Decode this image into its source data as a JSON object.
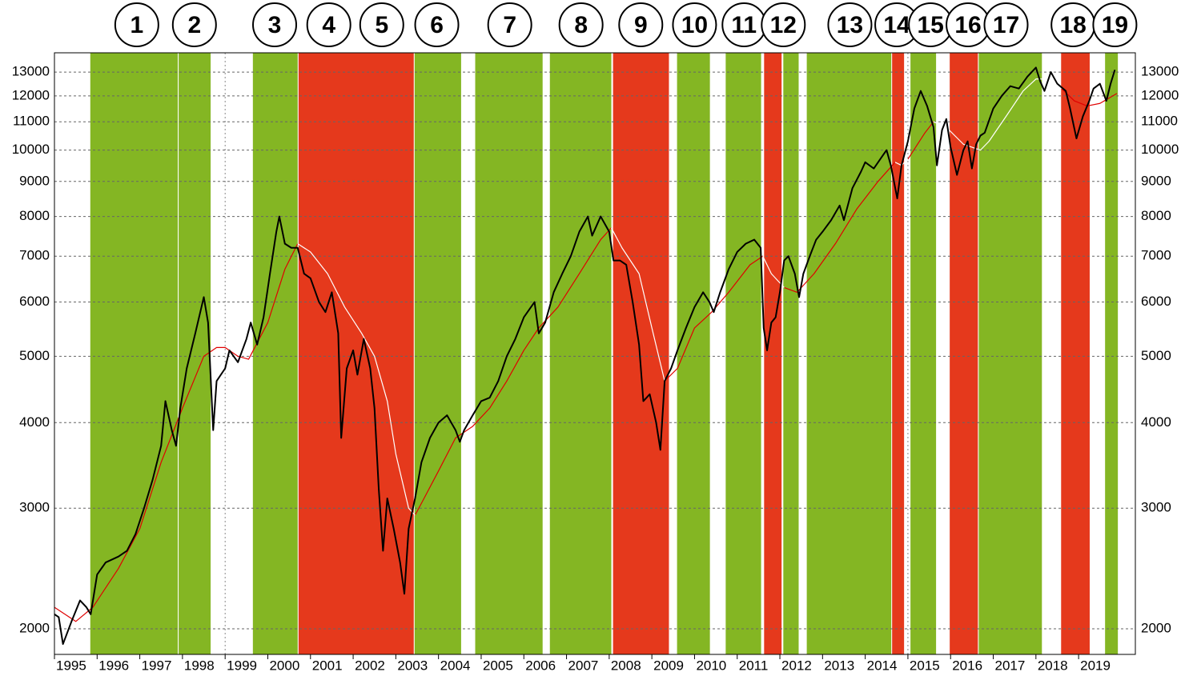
{
  "chart_data": {
    "type": "line",
    "log_scale": true,
    "grid": true,
    "xlim": [
      1995,
      2020.33
    ],
    "ylim": [
      1835,
      13870
    ],
    "xticks": [
      1995,
      1996,
      1997,
      1998,
      1999,
      2000,
      2001,
      2002,
      2003,
      2004,
      2005,
      2006,
      2007,
      2008,
      2009,
      2010,
      2011,
      2012,
      2013,
      2014,
      2015,
      2016,
      2017,
      2018,
      2019
    ],
    "yticks": [
      2000,
      3000,
      4000,
      5000,
      6000,
      7000,
      8000,
      9000,
      10000,
      11000,
      12000,
      13000
    ],
    "bands": [
      {
        "start": 1995.84,
        "end": 1997.89,
        "color": "#84b623"
      },
      {
        "start": 1997.91,
        "end": 1998.66,
        "color": "#84b623"
      },
      {
        "start": 1999.65,
        "end": 2000.7,
        "color": "#84b623"
      },
      {
        "start": 2000.72,
        "end": 2003.42,
        "color": "#e5391c"
      },
      {
        "start": 2003.44,
        "end": 2004.53,
        "color": "#84b623"
      },
      {
        "start": 2004.86,
        "end": 2006.44,
        "color": "#84b623"
      },
      {
        "start": 2006.61,
        "end": 2008.05,
        "color": "#84b623"
      },
      {
        "start": 2008.09,
        "end": 2009.4,
        "color": "#e5391c"
      },
      {
        "start": 2009.59,
        "end": 2010.36,
        "color": "#84b623"
      },
      {
        "start": 2010.73,
        "end": 2011.56,
        "color": "#84b623"
      },
      {
        "start": 2011.63,
        "end": 2012.04,
        "color": "#e5391c"
      },
      {
        "start": 2012.08,
        "end": 2012.44,
        "color": "#84b623"
      },
      {
        "start": 2012.63,
        "end": 2014.61,
        "color": "#84b623"
      },
      {
        "start": 2014.63,
        "end": 2014.91,
        "color": "#e5391c"
      },
      {
        "start": 2015.06,
        "end": 2015.66,
        "color": "#84b623"
      },
      {
        "start": 2015.98,
        "end": 2016.64,
        "color": "#e5391c"
      },
      {
        "start": 2016.66,
        "end": 2018.14,
        "color": "#84b623"
      },
      {
        "start": 2018.59,
        "end": 2019.26,
        "color": "#e5391c"
      },
      {
        "start": 2019.62,
        "end": 2019.92,
        "color": "#84b623"
      }
    ],
    "annotations": [
      {
        "label": "1",
        "x": 1996.93
      },
      {
        "label": "2",
        "x": 1998.28
      },
      {
        "label": "3",
        "x": 2000.16
      },
      {
        "label": "4",
        "x": 2001.43
      },
      {
        "label": "5",
        "x": 2002.67
      },
      {
        "label": "6",
        "x": 2003.96
      },
      {
        "label": "7",
        "x": 2005.67
      },
      {
        "label": "8",
        "x": 2007.34
      },
      {
        "label": "9",
        "x": 2008.74
      },
      {
        "label": "10",
        "x": 2010.0
      },
      {
        "label": "11",
        "x": 2011.16
      },
      {
        "label": "12",
        "x": 2012.08
      },
      {
        "label": "13",
        "x": 2013.64
      },
      {
        "label": "14",
        "x": 2014.74
      },
      {
        "label": "15",
        "x": 2015.53
      },
      {
        "label": "16",
        "x": 2016.41
      },
      {
        "label": "17",
        "x": 2017.3
      },
      {
        "label": "18",
        "x": 2018.87
      },
      {
        "label": "19",
        "x": 2019.85
      }
    ],
    "series": [
      {
        "color": "#000000",
        "x": [
          1995.0,
          1995.1,
          1995.2,
          1995.4,
          1995.6,
          1995.75,
          1995.85,
          1996.0,
          1996.2,
          1996.5,
          1996.7,
          1996.9,
          1997.1,
          1997.3,
          1997.5,
          1997.6,
          1997.75,
          1997.85,
          1997.95,
          1998.1,
          1998.3,
          1998.5,
          1998.6,
          1998.72,
          1998.8,
          1999.0,
          1999.1,
          1999.3,
          1999.5,
          1999.6,
          1999.75,
          1999.9,
          2000.05,
          2000.2,
          2000.27,
          2000.4,
          2000.55,
          2000.7,
          2000.85,
          2001.0,
          2001.2,
          2001.35,
          2001.5,
          2001.65,
          2001.72,
          2001.85,
          2002.0,
          2002.1,
          2002.25,
          2002.4,
          2002.5,
          2002.6,
          2002.7,
          2002.8,
          2002.95,
          2003.1,
          2003.2,
          2003.3,
          2003.45,
          2003.6,
          2003.8,
          2004.0,
          2004.2,
          2004.4,
          2004.5,
          2004.6,
          2004.8,
          2005.0,
          2005.2,
          2005.4,
          2005.6,
          2005.8,
          2006.0,
          2006.25,
          2006.35,
          2006.5,
          2006.7,
          2006.9,
          2007.1,
          2007.3,
          2007.5,
          2007.6,
          2007.8,
          2008.0,
          2008.1,
          2008.25,
          2008.4,
          2008.55,
          2008.7,
          2008.8,
          2008.95,
          2009.1,
          2009.2,
          2009.3,
          2009.45,
          2009.6,
          2009.8,
          2010.0,
          2010.2,
          2010.35,
          2010.45,
          2010.6,
          2010.8,
          2011.0,
          2011.2,
          2011.4,
          2011.55,
          2011.62,
          2011.7,
          2011.8,
          2011.9,
          2012.0,
          2012.1,
          2012.2,
          2012.35,
          2012.45,
          2012.55,
          2012.7,
          2012.85,
          2013.0,
          2013.2,
          2013.4,
          2013.5,
          2013.7,
          2013.9,
          2014.0,
          2014.2,
          2014.4,
          2014.5,
          2014.6,
          2014.75,
          2014.85,
          2015.0,
          2015.15,
          2015.3,
          2015.45,
          2015.6,
          2015.68,
          2015.8,
          2015.9,
          2016.0,
          2016.15,
          2016.3,
          2016.4,
          2016.5,
          2016.6,
          2016.7,
          2016.8,
          2017.0,
          2017.2,
          2017.4,
          2017.6,
          2017.8,
          2018.0,
          2018.1,
          2018.2,
          2018.35,
          2018.5,
          2018.7,
          2018.8,
          2018.95,
          2019.1,
          2019.25,
          2019.35,
          2019.5,
          2019.65,
          2019.75,
          2019.85
        ],
        "values": [
          2100,
          2080,
          1900,
          2050,
          2200,
          2150,
          2100,
          2400,
          2500,
          2550,
          2600,
          2750,
          3000,
          3300,
          3700,
          4300,
          3900,
          3700,
          4200,
          4800,
          5400,
          6100,
          5600,
          3900,
          4600,
          4800,
          5100,
          4900,
          5300,
          5600,
          5200,
          5700,
          6600,
          7600,
          8000,
          7300,
          7200,
          7200,
          6600,
          6500,
          6000,
          5800,
          6200,
          5400,
          3800,
          4800,
          5100,
          4700,
          5300,
          4800,
          4200,
          3200,
          2600,
          3100,
          2800,
          2500,
          2250,
          2800,
          3100,
          3500,
          3800,
          4000,
          4100,
          3900,
          3750,
          3900,
          4100,
          4300,
          4350,
          4600,
          5000,
          5300,
          5700,
          6000,
          5400,
          5600,
          6200,
          6600,
          7000,
          7600,
          8000,
          7500,
          8000,
          7600,
          6900,
          6900,
          6800,
          6000,
          5200,
          4300,
          4400,
          4000,
          3650,
          4600,
          4800,
          5100,
          5500,
          5900,
          6200,
          6000,
          5800,
          6200,
          6700,
          7100,
          7300,
          7400,
          7200,
          5500,
          5100,
          5600,
          5700,
          6200,
          6900,
          7000,
          6600,
          6100,
          6600,
          7000,
          7400,
          7600,
          7900,
          8300,
          7900,
          8800,
          9300,
          9600,
          9400,
          9800,
          10000,
          9500,
          8500,
          9500,
          10300,
          11500,
          12200,
          11600,
          10800,
          9500,
          10700,
          11100,
          10100,
          9200,
          10000,
          10300,
          9400,
          10200,
          10500,
          10600,
          11500,
          12000,
          12400,
          12300,
          12800,
          13200,
          12600,
          12200,
          13000,
          12500,
          12200,
          11500,
          10400,
          11200,
          11800,
          12300,
          12500,
          11800,
          12500,
          13100
        ]
      },
      {
        "color": "#e00000",
        "x": [
          1995.0,
          1995.5,
          1995.9,
          1996.5,
          1997.0,
          1997.5,
          1998.0,
          1998.5,
          1998.8,
          1999.0,
          1999.3,
          1999.55,
          2000.0,
          2000.4,
          2000.7,
          2001.0,
          2001.4,
          2001.8,
          2002.2,
          2002.5,
          2002.8,
          2003.0,
          2003.3,
          2003.45,
          2003.6,
          2004.0,
          2004.4,
          2004.8,
          2005.2,
          2005.6,
          2006.0,
          2006.35,
          2006.8,
          2007.3,
          2007.8,
          2008.05,
          2008.3,
          2008.7,
          2009.0,
          2009.3,
          2009.6,
          2010.0,
          2010.4,
          2010.8,
          2011.3,
          2011.6,
          2011.8,
          2012.1,
          2012.4,
          2012.8,
          2013.3,
          2013.8,
          2014.3,
          2014.7,
          2014.85,
          2015.0,
          2015.4,
          2015.6,
          2015.9,
          2016.3,
          2016.7,
          2016.9,
          2017.3,
          2017.7,
          2018.0,
          2018.4,
          2018.6,
          2018.9,
          2019.2,
          2019.5,
          2019.9
        ],
        "values": [
          2150,
          2050,
          2150,
          2450,
          2800,
          3500,
          4200,
          5000,
          5150,
          5150,
          5000,
          4950,
          5600,
          6700,
          7300,
          null,
          null,
          null,
          null,
          null,
          null,
          null,
          null,
          2930,
          3050,
          3400,
          3800,
          3950,
          4200,
          4600,
          5100,
          5500,
          5900,
          6600,
          7400,
          7700,
          null,
          null,
          null,
          4600,
          4800,
          5500,
          5800,
          6200,
          6800,
          7000,
          null,
          6300,
          6200,
          6600,
          7300,
          8200,
          9000,
          9600,
          null,
          9700,
          10600,
          11000,
          null,
          null,
          null,
          null,
          null,
          null,
          null,
          null,
          12300,
          11800,
          11600,
          11700,
          12100
        ]
      },
      {
        "color": "#ffffff",
        "x": [
          1995.0,
          1995.5,
          1995.9,
          1996.5,
          1997.0,
          1997.5,
          1998.0,
          1998.5,
          1998.8,
          1999.0,
          1999.3,
          1999.55,
          2000.0,
          2000.4,
          2000.7,
          2001.0,
          2001.4,
          2001.8,
          2002.2,
          2002.5,
          2002.8,
          2003.0,
          2003.3,
          2003.45,
          2003.6,
          2004.0,
          2004.4,
          2004.8,
          2005.2,
          2005.6,
          2006.0,
          2006.35,
          2006.8,
          2007.3,
          2007.8,
          2008.05,
          2008.3,
          2008.7,
          2009.0,
          2009.3,
          2009.6,
          2010.0,
          2010.4,
          2010.8,
          2011.3,
          2011.6,
          2011.8,
          2012.1,
          2012.4,
          2012.8,
          2013.3,
          2013.8,
          2014.3,
          2014.7,
          2014.85,
          2015.0,
          2015.4,
          2015.6,
          2015.9,
          2016.3,
          2016.7,
          2016.9,
          2017.3,
          2017.7,
          2018.0,
          2018.4,
          2018.6,
          2018.9,
          2019.2,
          2019.5,
          2019.9
        ],
        "values": [
          null,
          null,
          null,
          null,
          null,
          null,
          null,
          null,
          null,
          null,
          null,
          null,
          null,
          null,
          7300,
          7100,
          6600,
          5900,
          5400,
          5000,
          4300,
          3600,
          3000,
          2930,
          null,
          null,
          null,
          null,
          null,
          null,
          null,
          null,
          null,
          null,
          null,
          7700,
          7200,
          6600,
          5500,
          4600,
          null,
          null,
          null,
          null,
          null,
          7000,
          6600,
          6300,
          null,
          null,
          null,
          null,
          null,
          9600,
          9500,
          9700,
          null,
          11000,
          10800,
          10200,
          10000,
          10300,
          11200,
          12200,
          12700,
          12700,
          12300,
          null,
          null,
          null,
          null
        ]
      }
    ]
  }
}
